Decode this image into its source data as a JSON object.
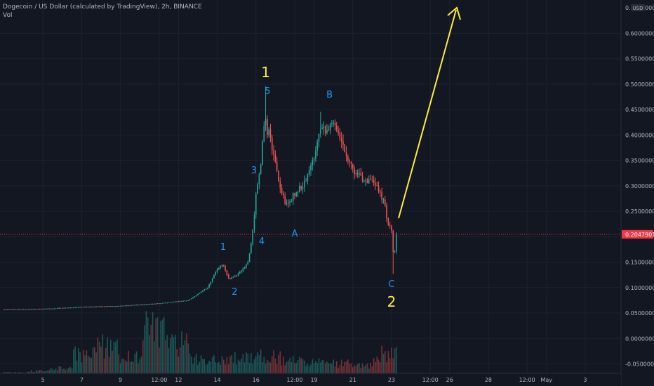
{
  "header": {
    "symbol": "Dogecoin / US Dollar (calculated by TradingView), 2h, BINANCE",
    "indicator": "Vol"
  },
  "axis": {
    "currency": "USD",
    "price_ticks": [
      "0.65000000",
      "0.60000000",
      "0.55000000",
      "0.50000000",
      "0.45000000",
      "0.40000000",
      "0.35000000",
      "0.30000000",
      "0.25000000",
      "0.15000000",
      "0.10000000",
      "0.05000000",
      "0.00000000",
      "-0.05000000"
    ],
    "last_price": "0.20479014",
    "time_ticks": [
      "5",
      "7",
      "9",
      "12:00",
      "12",
      "14",
      "16",
      "12:00",
      "19",
      "21",
      "23",
      "12:00",
      "26",
      "28",
      "12:00",
      "May",
      "3"
    ]
  },
  "annotations": {
    "wave1_major": "1",
    "wave2_major": "2",
    "minor": [
      "1",
      "2",
      "3",
      "4",
      "5",
      "A",
      "B",
      "C"
    ]
  },
  "colors": {
    "background": "#131722",
    "grid": "#1e222d",
    "bull": "#26a69a",
    "bear": "#ef5350",
    "wave_major": "#ffeb3b",
    "wave_minor": "#2196f3",
    "arrow": "#ffeb3b",
    "price_label": "#f23645",
    "axis_text": "#b2b5be"
  },
  "chart_data": {
    "type": "candlestick",
    "x_unit": "date (April–May 2021)",
    "y_unit": "USD",
    "ylim": [
      -0.065,
      0.66
    ],
    "grid": true,
    "path": [
      [
        3.0,
        0.057
      ],
      [
        5.0,
        0.058
      ],
      [
        7.0,
        0.062
      ],
      [
        9.0,
        0.064
      ],
      [
        11.0,
        0.069
      ],
      [
        12.5,
        0.075
      ],
      [
        13.5,
        0.1
      ],
      [
        14.0,
        0.135
      ],
      [
        14.3,
        0.145
      ],
      [
        14.6,
        0.118
      ],
      [
        14.9,
        0.122
      ],
      [
        15.3,
        0.135
      ],
      [
        15.6,
        0.15
      ],
      [
        15.8,
        0.2
      ],
      [
        16.0,
        0.28
      ],
      [
        16.2,
        0.33
      ],
      [
        16.5,
        0.44
      ],
      [
        16.8,
        0.38
      ],
      [
        17.2,
        0.3
      ],
      [
        17.6,
        0.26
      ],
      [
        18.0,
        0.285
      ],
      [
        18.5,
        0.305
      ],
      [
        19.0,
        0.355
      ],
      [
        19.3,
        0.42
      ],
      [
        19.7,
        0.41
      ],
      [
        20.1,
        0.425
      ],
      [
        20.4,
        0.39
      ],
      [
        20.8,
        0.35
      ],
      [
        21.2,
        0.32
      ],
      [
        21.6,
        0.315
      ],
      [
        22.0,
        0.305
      ],
      [
        22.3,
        0.295
      ],
      [
        22.6,
        0.27
      ],
      [
        22.8,
        0.23
      ],
      [
        23.0,
        0.21
      ],
      [
        23.1,
        0.14
      ],
      [
        23.25,
        0.205
      ]
    ],
    "volume_scale": [
      0.02,
      0.05,
      0.1,
      0.4,
      0.55,
      0.35,
      0.9,
      0.6,
      0.3,
      0.28,
      0.3,
      0.35,
      0.25,
      0.22,
      0.2,
      0.15,
      0.4
    ],
    "last_price": 0.20479014
  }
}
